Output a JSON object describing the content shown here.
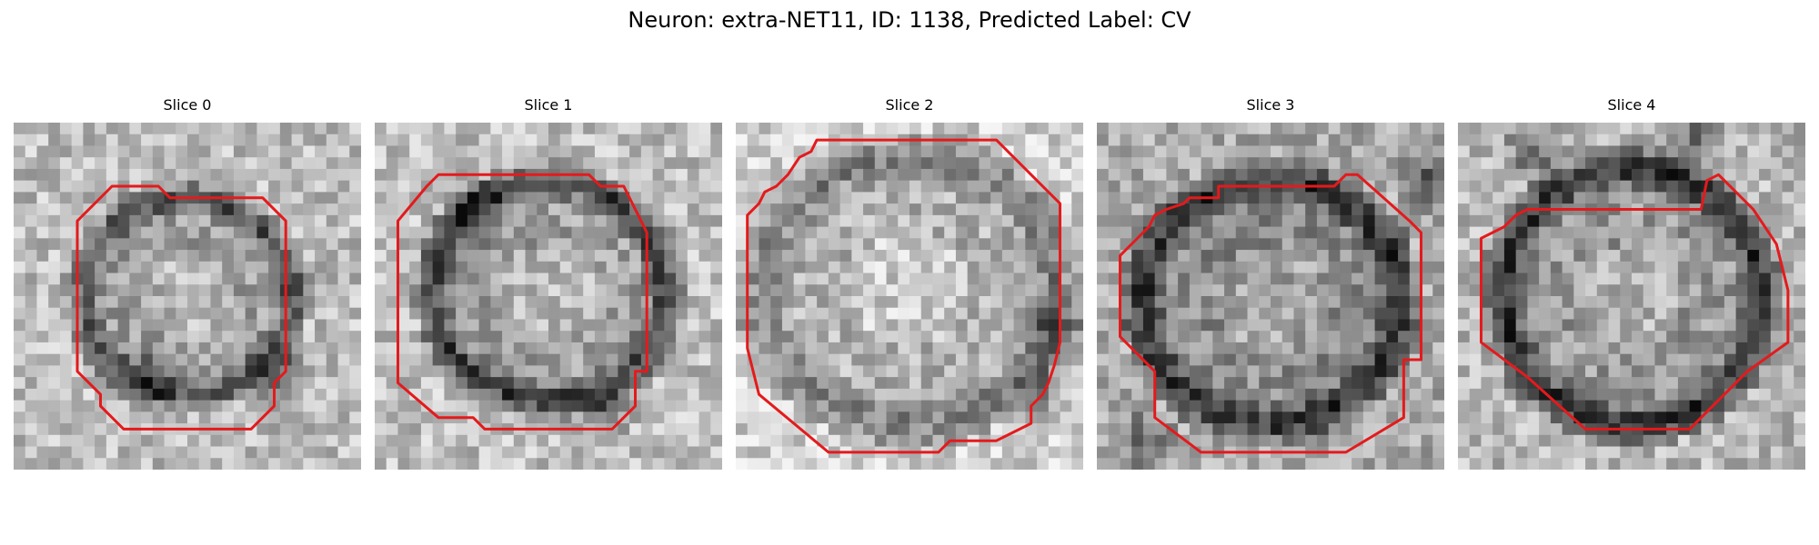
{
  "figure": {
    "title": "Neuron: extra-NET11, ID: 1138, Predicted Label: CV"
  },
  "panels": [
    {
      "title": "Slice 0"
    },
    {
      "title": "Slice 1"
    },
    {
      "title": "Slice 2"
    },
    {
      "title": "Slice 3"
    },
    {
      "title": "Slice 4"
    }
  ],
  "colors": {
    "background": "#ffffff",
    "contour": "#e41a1c",
    "image_colormap": "grayscale"
  },
  "icons": {
    "panel_image": "grayscale-microscopy-image",
    "outline": "red-segmentation-contour"
  }
}
